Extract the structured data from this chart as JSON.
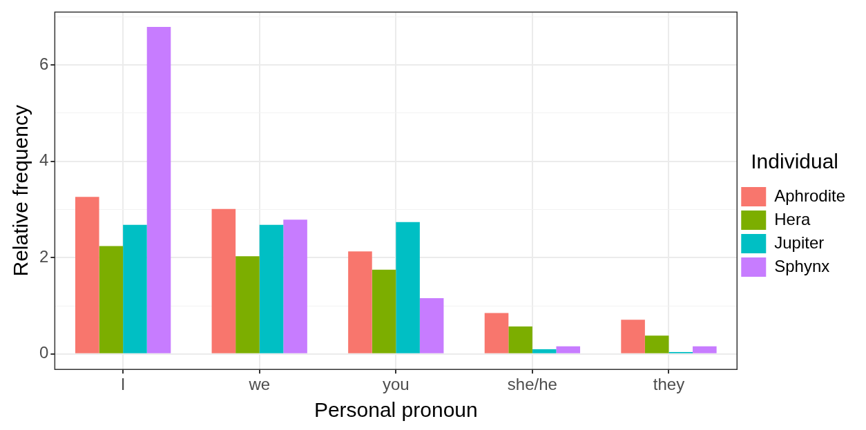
{
  "chart_data": {
    "type": "bar",
    "xlabel": "Personal pronoun",
    "ylabel": "Relative frequency",
    "legend_title": "Individual",
    "legend": "right",
    "grid": true,
    "categories": [
      "I",
      "we",
      "you",
      "she/he",
      "they"
    ],
    "series": [
      {
        "name": "Aphrodite",
        "color": "#f8766d",
        "values": [
          3.26,
          3.01,
          2.13,
          0.85,
          0.71
        ]
      },
      {
        "name": "Hera",
        "color": "#7cae00",
        "values": [
          2.24,
          2.03,
          1.75,
          0.57,
          0.38
        ]
      },
      {
        "name": "Jupiter",
        "color": "#00bfc4",
        "values": [
          2.68,
          2.68,
          2.74,
          0.1,
          0.04
        ]
      },
      {
        "name": "Sphynx",
        "color": "#c77cff",
        "values": [
          6.79,
          2.79,
          1.16,
          0.16,
          0.16
        ]
      }
    ],
    "ylim": [
      -0.32,
      7.1
    ],
    "yticks": [
      0,
      {
        "value": 1,
        "label": null
      },
      2,
      {
        "value": 3,
        "label": null
      },
      4,
      {
        "value": 5,
        "label": null
      },
      6,
      {
        "value": 7,
        "label": null
      }
    ]
  }
}
